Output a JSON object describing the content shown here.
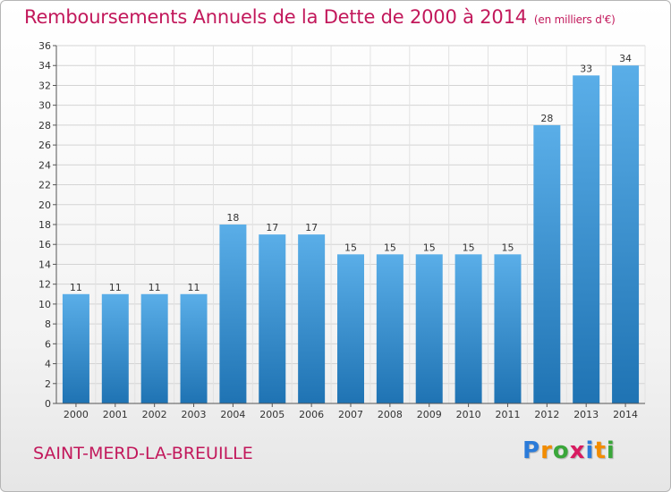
{
  "title": "Remboursements Annuels de la Dette de 2000 à 2014",
  "subtitle": "(en milliers d'€)",
  "city": "SAINT-MERD-LA-BREUILLE",
  "logo": {
    "letters": [
      "P",
      "r",
      "o",
      "x",
      "i",
      "t",
      "i"
    ],
    "colors": [
      "#2b7bd9",
      "#f28c00",
      "#3aa63a",
      "#d81b60",
      "#2b7bd9",
      "#f28c00",
      "#3aa63a"
    ]
  },
  "colors": {
    "bar_top": "#5aaee8",
    "bar_bottom": "#1f73b3",
    "title": "#c2185b"
  },
  "chart_data": {
    "type": "bar",
    "title": "Remboursements Annuels de la Dette de 2000 à 2014",
    "xlabel": "",
    "ylabel": "",
    "categories": [
      "2000",
      "2001",
      "2002",
      "2003",
      "2004",
      "2005",
      "2006",
      "2007",
      "2008",
      "2009",
      "2010",
      "2011",
      "2012",
      "2013",
      "2014"
    ],
    "values": [
      11,
      11,
      11,
      11,
      18,
      17,
      17,
      15,
      15,
      15,
      15,
      15,
      28,
      33,
      34
    ],
    "ylim": [
      0,
      36
    ],
    "yticks": [
      0,
      2,
      4,
      6,
      8,
      10,
      12,
      14,
      16,
      18,
      20,
      22,
      24,
      26,
      28,
      30,
      32,
      34,
      36
    ],
    "grid": true
  }
}
